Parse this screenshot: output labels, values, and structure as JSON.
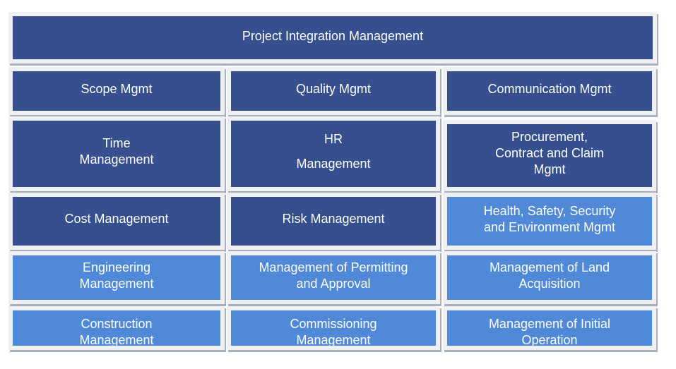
{
  "colors": {
    "dark": "#364f8f",
    "light": "#5089d8",
    "frame": "#eef0f4"
  },
  "top": {
    "label": "Project Integration Management"
  },
  "cells": [
    {
      "lines": [
        "Scope Mgmt"
      ],
      "tone": "dark"
    },
    {
      "lines": [
        "Quality Mgmt"
      ],
      "tone": "dark"
    },
    {
      "lines": [
        "Communication Mgmt"
      ],
      "tone": "dark"
    },
    {
      "lines": [
        "Time",
        "Management"
      ],
      "tone": "dark"
    },
    {
      "lines": [
        "HR",
        "Management"
      ],
      "tone": "dark"
    },
    {
      "lines": [
        "Procurement,",
        "Contract and Claim",
        "Mgmt"
      ],
      "tone": "dark"
    },
    {
      "lines": [
        "Cost Management"
      ],
      "tone": "dark"
    },
    {
      "lines": [
        "Risk Management"
      ],
      "tone": "dark"
    },
    {
      "lines": [
        "Health, Safety, Security",
        "and Environment Mgmt"
      ],
      "tone": "light"
    },
    {
      "lines": [
        "Engineering",
        "Management"
      ],
      "tone": "light"
    },
    {
      "lines": [
        "Management of Permitting",
        "and Approval"
      ],
      "tone": "light"
    },
    {
      "lines": [
        "Management of Land",
        "Acquisition"
      ],
      "tone": "light"
    },
    {
      "lines": [
        "Construction",
        "Management"
      ],
      "tone": "light"
    },
    {
      "lines": [
        "Commissioning",
        "Management"
      ],
      "tone": "light"
    },
    {
      "lines": [
        "Management of Initial",
        "Operation"
      ],
      "tone": "light"
    }
  ]
}
